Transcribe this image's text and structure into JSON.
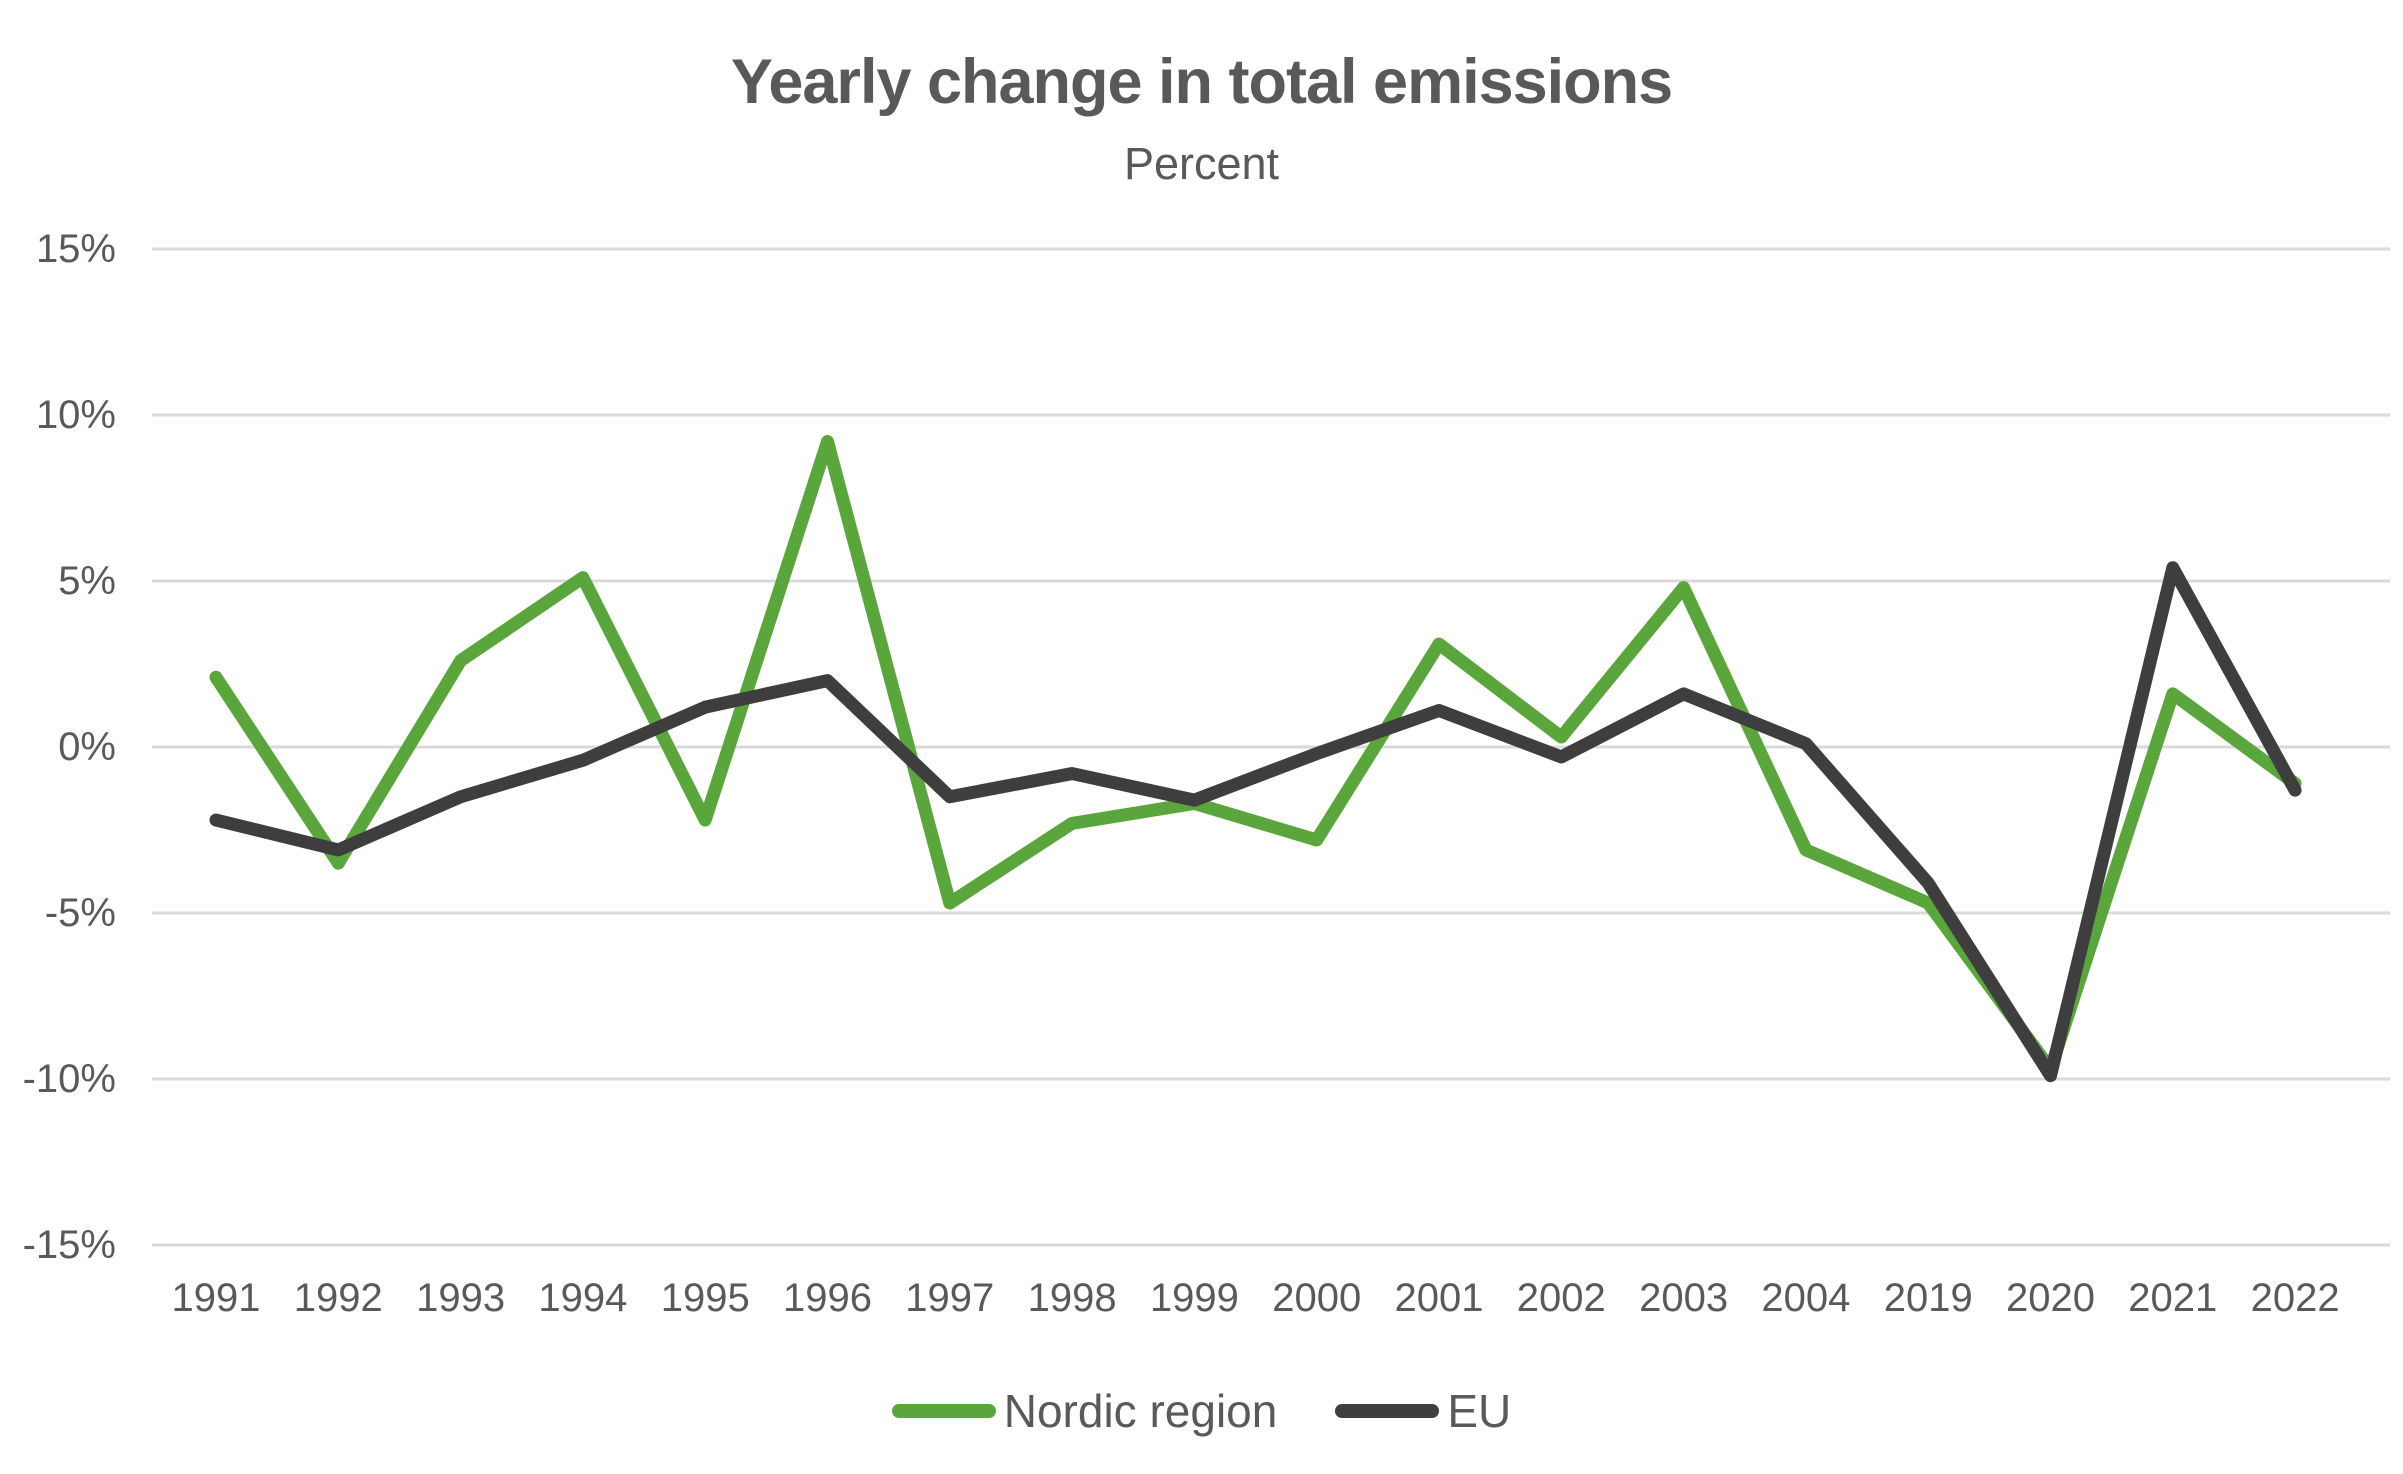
{
  "chart_data": {
    "type": "line",
    "title": "Yearly change in total emissions",
    "subtitle": "Percent",
    "categories": [
      "1991",
      "1992",
      "1993",
      "1994",
      "1995",
      "1996",
      "1997",
      "1998",
      "1999",
      "2000",
      "2001",
      "2002",
      "2003",
      "2004",
      "2019",
      "2020",
      "2021",
      "2022"
    ],
    "series": [
      {
        "name": "Nordic region",
        "color": "#5AA53C",
        "values": [
          2.1,
          -3.5,
          2.6,
          5.1,
          -2.2,
          9.2,
          -4.7,
          -2.3,
          -1.7,
          -2.8,
          3.1,
          0.3,
          4.8,
          -3.1,
          -4.7,
          -9.7,
          1.6,
          -1.1
        ]
      },
      {
        "name": "EU",
        "color": "#3E3E3E",
        "values": [
          -2.2,
          -3.1,
          -1.5,
          -0.4,
          1.2,
          2.0,
          -1.5,
          -0.8,
          -1.6,
          -0.2,
          1.1,
          -0.3,
          1.6,
          0.1,
          -4.1,
          -9.9,
          5.4,
          -1.3
        ]
      }
    ],
    "ylim": [
      -15,
      15
    ],
    "y_ticks": [
      15,
      10,
      5,
      0,
      -5,
      -10,
      -15
    ],
    "y_tick_labels": [
      "15%",
      "10%",
      "5%",
      "0%",
      "-5%",
      "-10%",
      "-15%"
    ],
    "xlabel": "",
    "ylabel": "",
    "grid": true,
    "legend_position": "bottom"
  },
  "colors": {
    "background": "#FFFFFF",
    "text": "#595959",
    "gridline": "#D9D9D9"
  }
}
